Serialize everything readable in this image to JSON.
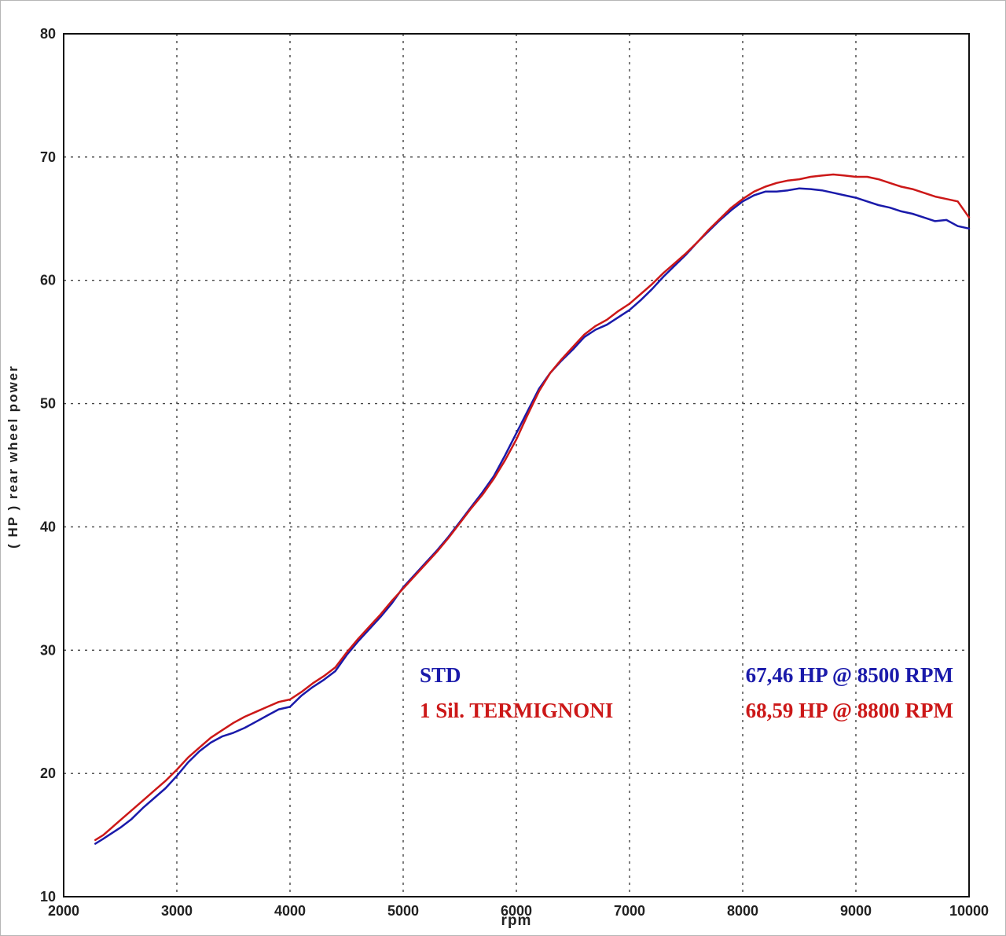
{
  "figure": {
    "background": "#ffffff",
    "frame_color": "#111111",
    "grid_color": "#444444",
    "tick_label_color": "#222222"
  },
  "chart_data": {
    "type": "line",
    "title": "",
    "xlabel": "rpm",
    "ylabel": "( HP )   rear  wheel  power",
    "xlim": [
      2000,
      10000
    ],
    "ylim": [
      10,
      80
    ],
    "x_ticks": [
      2000,
      3000,
      4000,
      5000,
      6000,
      7000,
      8000,
      9000,
      10000
    ],
    "y_ticks": [
      10,
      20,
      30,
      40,
      50,
      60,
      70,
      80
    ],
    "grid": true,
    "grid_style": "dashed",
    "legend_position": "inside-bottom-right",
    "series": [
      {
        "name": "STD",
        "color": "#1a1aaa",
        "peak_label": "67,46 HP @ 8500 RPM",
        "peak_hp": 67.46,
        "peak_rpm": 8500,
        "points": [
          [
            2280,
            14.3
          ],
          [
            2350,
            14.7
          ],
          [
            2400,
            15.0
          ],
          [
            2500,
            15.6
          ],
          [
            2600,
            16.3
          ],
          [
            2700,
            17.2
          ],
          [
            2800,
            18.0
          ],
          [
            2900,
            18.8
          ],
          [
            3000,
            19.8
          ],
          [
            3100,
            20.9
          ],
          [
            3200,
            21.8
          ],
          [
            3300,
            22.5
          ],
          [
            3400,
            23.0
          ],
          [
            3500,
            23.3
          ],
          [
            3600,
            23.7
          ],
          [
            3700,
            24.2
          ],
          [
            3800,
            24.7
          ],
          [
            3900,
            25.2
          ],
          [
            4000,
            25.4
          ],
          [
            4100,
            26.3
          ],
          [
            4200,
            27.0
          ],
          [
            4300,
            27.6
          ],
          [
            4400,
            28.3
          ],
          [
            4500,
            29.6
          ],
          [
            4600,
            30.7
          ],
          [
            4700,
            31.7
          ],
          [
            4800,
            32.7
          ],
          [
            4900,
            33.8
          ],
          [
            5000,
            35.1
          ],
          [
            5100,
            36.1
          ],
          [
            5200,
            37.1
          ],
          [
            5300,
            38.1
          ],
          [
            5400,
            39.2
          ],
          [
            5500,
            40.4
          ],
          [
            5600,
            41.6
          ],
          [
            5700,
            42.8
          ],
          [
            5800,
            44.1
          ],
          [
            5900,
            45.8
          ],
          [
            6000,
            47.6
          ],
          [
            6100,
            49.4
          ],
          [
            6200,
            51.2
          ],
          [
            6300,
            52.5
          ],
          [
            6400,
            53.5
          ],
          [
            6500,
            54.4
          ],
          [
            6600,
            55.4
          ],
          [
            6700,
            56.0
          ],
          [
            6800,
            56.4
          ],
          [
            6900,
            57.0
          ],
          [
            7000,
            57.6
          ],
          [
            7100,
            58.4
          ],
          [
            7200,
            59.3
          ],
          [
            7300,
            60.3
          ],
          [
            7400,
            61.2
          ],
          [
            7500,
            62.1
          ],
          [
            7600,
            63.1
          ],
          [
            7700,
            64.0
          ],
          [
            7800,
            64.9
          ],
          [
            7900,
            65.7
          ],
          [
            8000,
            66.4
          ],
          [
            8100,
            66.9
          ],
          [
            8200,
            67.2
          ],
          [
            8300,
            67.2
          ],
          [
            8400,
            67.3
          ],
          [
            8500,
            67.46
          ],
          [
            8600,
            67.4
          ],
          [
            8700,
            67.3
          ],
          [
            8800,
            67.1
          ],
          [
            8900,
            66.9
          ],
          [
            9000,
            66.7
          ],
          [
            9100,
            66.4
          ],
          [
            9200,
            66.1
          ],
          [
            9300,
            65.9
          ],
          [
            9400,
            65.6
          ],
          [
            9500,
            65.4
          ],
          [
            9600,
            65.1
          ],
          [
            9700,
            64.8
          ],
          [
            9800,
            64.9
          ],
          [
            9900,
            64.4
          ],
          [
            10000,
            64.2
          ]
        ]
      },
      {
        "name": "1 Sil. TERMIGNONI",
        "color": "#cc1818",
        "peak_label": "68,59 HP @ 8800 RPM",
        "peak_hp": 68.59,
        "peak_rpm": 8800,
        "points": [
          [
            2280,
            14.6
          ],
          [
            2350,
            15.0
          ],
          [
            2400,
            15.4
          ],
          [
            2500,
            16.2
          ],
          [
            2600,
            17.0
          ],
          [
            2700,
            17.8
          ],
          [
            2800,
            18.6
          ],
          [
            2900,
            19.4
          ],
          [
            3000,
            20.3
          ],
          [
            3100,
            21.3
          ],
          [
            3200,
            22.1
          ],
          [
            3300,
            22.9
          ],
          [
            3400,
            23.5
          ],
          [
            3500,
            24.1
          ],
          [
            3600,
            24.6
          ],
          [
            3700,
            25.0
          ],
          [
            3800,
            25.4
          ],
          [
            3900,
            25.8
          ],
          [
            4000,
            26.0
          ],
          [
            4100,
            26.6
          ],
          [
            4200,
            27.3
          ],
          [
            4300,
            27.9
          ],
          [
            4400,
            28.6
          ],
          [
            4500,
            29.8
          ],
          [
            4600,
            30.9
          ],
          [
            4700,
            31.9
          ],
          [
            4800,
            32.9
          ],
          [
            4900,
            34.0
          ],
          [
            5000,
            35.0
          ],
          [
            5100,
            36.0
          ],
          [
            5200,
            37.0
          ],
          [
            5300,
            38.0
          ],
          [
            5400,
            39.1
          ],
          [
            5500,
            40.3
          ],
          [
            5600,
            41.5
          ],
          [
            5700,
            42.6
          ],
          [
            5800,
            43.9
          ],
          [
            5900,
            45.4
          ],
          [
            6000,
            47.1
          ],
          [
            6100,
            49.1
          ],
          [
            6200,
            51.0
          ],
          [
            6300,
            52.5
          ],
          [
            6400,
            53.6
          ],
          [
            6500,
            54.6
          ],
          [
            6600,
            55.6
          ],
          [
            6700,
            56.3
          ],
          [
            6800,
            56.8
          ],
          [
            6900,
            57.5
          ],
          [
            7000,
            58.1
          ],
          [
            7100,
            58.9
          ],
          [
            7200,
            59.7
          ],
          [
            7300,
            60.6
          ],
          [
            7400,
            61.4
          ],
          [
            7500,
            62.2
          ],
          [
            7600,
            63.1
          ],
          [
            7700,
            64.1
          ],
          [
            7800,
            65.0
          ],
          [
            7900,
            65.9
          ],
          [
            8000,
            66.6
          ],
          [
            8100,
            67.2
          ],
          [
            8200,
            67.6
          ],
          [
            8300,
            67.9
          ],
          [
            8400,
            68.1
          ],
          [
            8500,
            68.2
          ],
          [
            8600,
            68.4
          ],
          [
            8700,
            68.5
          ],
          [
            8800,
            68.59
          ],
          [
            8900,
            68.5
          ],
          [
            9000,
            68.4
          ],
          [
            9100,
            68.4
          ],
          [
            9200,
            68.2
          ],
          [
            9300,
            67.9
          ],
          [
            9400,
            67.6
          ],
          [
            9500,
            67.4
          ],
          [
            9600,
            67.1
          ],
          [
            9700,
            66.8
          ],
          [
            9800,
            66.6
          ],
          [
            9900,
            66.4
          ],
          [
            10000,
            65.1
          ]
        ]
      }
    ]
  }
}
